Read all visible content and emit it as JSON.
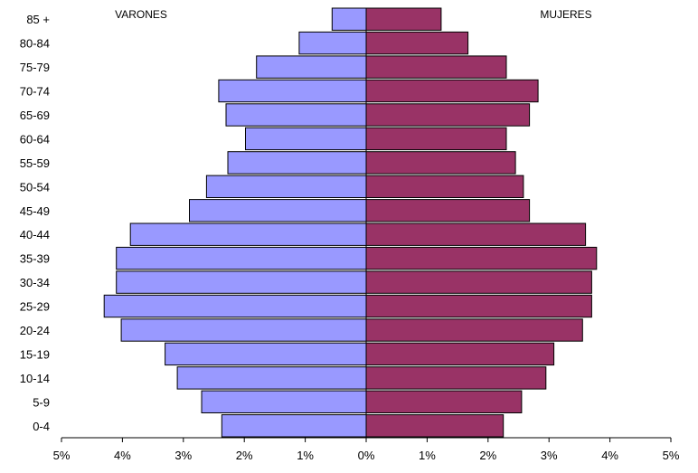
{
  "chart_data": {
    "type": "bar",
    "orientation": "horizontal",
    "layout": "population-pyramid",
    "categories": [
      "0-4",
      "5-9",
      "10-14",
      "15-19",
      "20-24",
      "25-29",
      "30-34",
      "35-39",
      "40-44",
      "45-49",
      "50-54",
      "55-59",
      "60-64",
      "65-69",
      "70-74",
      "75-79",
      "80-84",
      "85 +"
    ],
    "series": [
      {
        "name": "VARONES",
        "side": "left",
        "color": "#9999ff",
        "values": [
          2.37,
          2.7,
          3.1,
          3.3,
          4.02,
          4.3,
          4.1,
          4.1,
          3.87,
          2.9,
          2.62,
          2.27,
          1.98,
          2.3,
          2.42,
          1.8,
          1.1,
          0.56
        ]
      },
      {
        "name": "MUJERES",
        "side": "right",
        "color": "#993366",
        "values": [
          2.25,
          2.55,
          2.95,
          3.08,
          3.55,
          3.7,
          3.7,
          3.78,
          3.6,
          2.68,
          2.58,
          2.45,
          2.3,
          2.68,
          2.82,
          2.3,
          1.67,
          1.23
        ]
      }
    ],
    "x_ticks": [
      "5%",
      "4%",
      "3%",
      "2%",
      "1%",
      "0%",
      "1%",
      "2%",
      "3%",
      "4%",
      "5%"
    ],
    "xlim": [
      -5,
      5
    ],
    "unit": "%",
    "grid": false,
    "legend": "none"
  }
}
